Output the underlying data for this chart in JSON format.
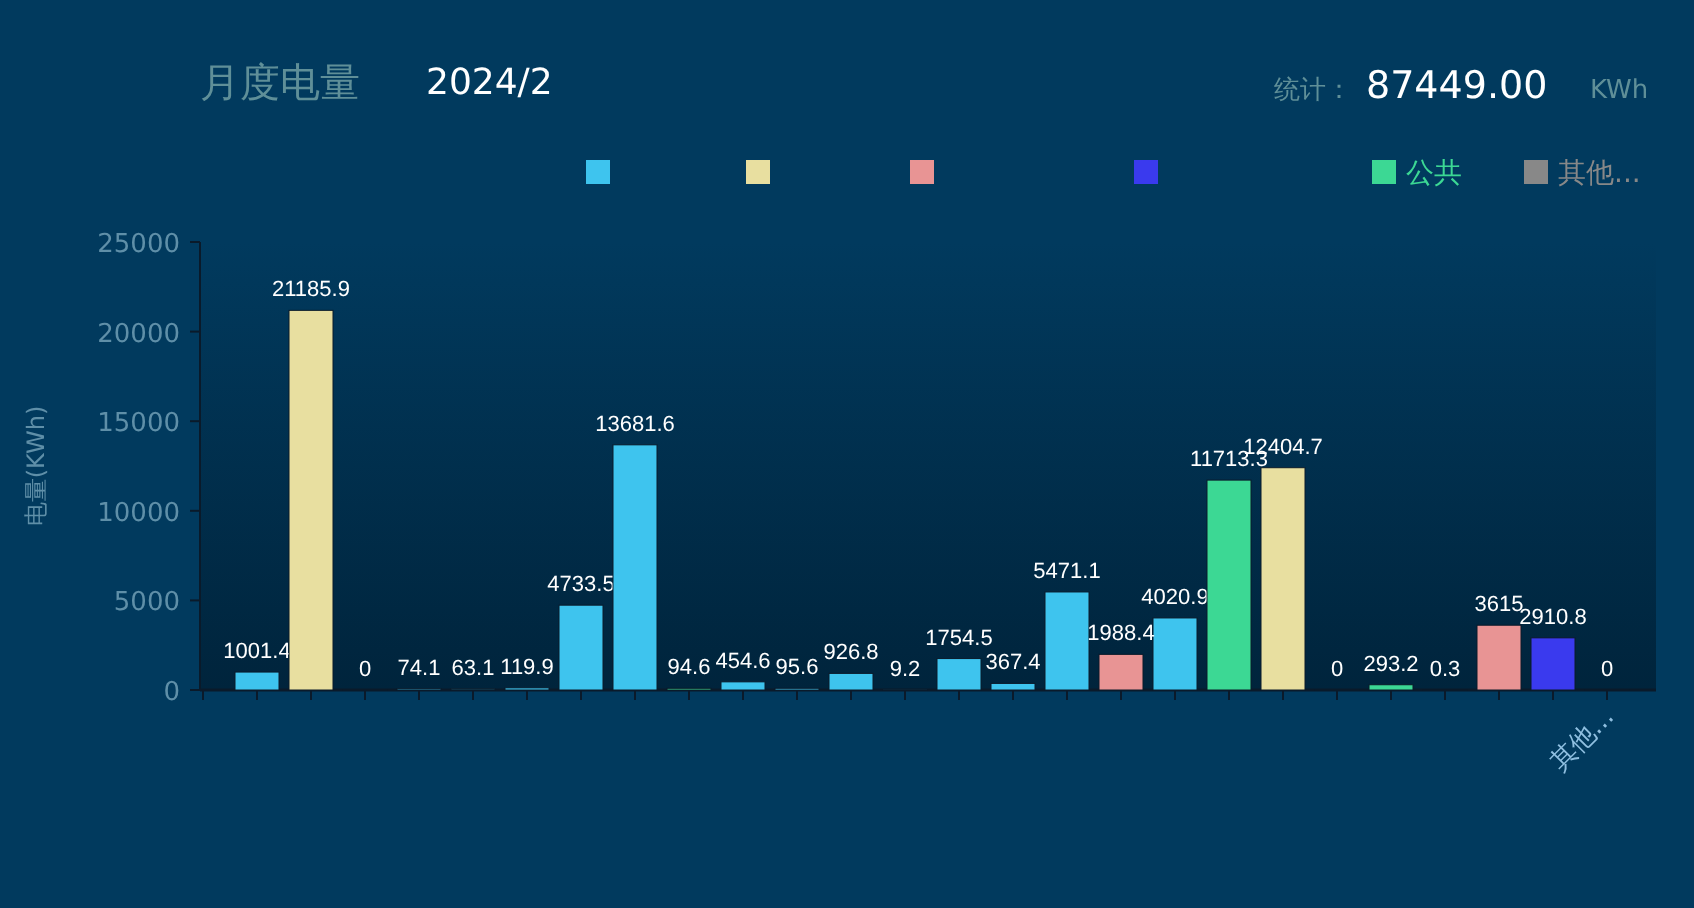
{
  "chart_data": {
    "type": "bar",
    "title": "月度电量",
    "subtitle": "2024/2",
    "annotations": [
      "统计：",
      "87449.00",
      "KWh"
    ],
    "ylabel": "电量(KWh)",
    "categories": [
      null,
      null,
      null,
      null,
      null,
      null,
      null,
      null,
      null,
      null,
      null,
      null,
      null,
      null,
      null,
      null,
      null,
      null,
      null,
      null,
      null,
      null,
      null,
      null,
      null,
      null,
      "其他..."
    ],
    "series": [
      {
        "color": "#3ec4ee",
        "values": [
          null,
          1001.4,
          null,
          0,
          74.1,
          63.1,
          119.9,
          4733.5,
          13681.6,
          null,
          454.6,
          95.6,
          926.8,
          9.2,
          1754.5,
          367.4,
          5471.1,
          null,
          4020.9,
          null,
          null,
          0,
          null,
          0.3,
          null,
          null,
          null
        ]
      },
      {
        "color": "#e8dfa0",
        "values": [
          null,
          null,
          21185.9,
          null,
          null,
          null,
          null,
          null,
          null,
          null,
          null,
          null,
          null,
          null,
          null,
          null,
          null,
          null,
          null,
          null,
          12404.7,
          null,
          null,
          null,
          null,
          null,
          null
        ]
      },
      {
        "color": "#e89494",
        "values": [
          null,
          null,
          null,
          null,
          null,
          null,
          null,
          null,
          null,
          null,
          null,
          null,
          null,
          null,
          null,
          null,
          null,
          1988.4,
          null,
          null,
          null,
          null,
          null,
          null,
          3615,
          null,
          null
        ]
      },
      {
        "color": "#3a3aee",
        "values": [
          null,
          null,
          null,
          null,
          null,
          null,
          null,
          null,
          null,
          null,
          null,
          null,
          null,
          null,
          null,
          null,
          null,
          null,
          null,
          null,
          null,
          null,
          null,
          null,
          null,
          2910.8,
          null
        ]
      },
      {
        "name": "公共",
        "color": "#3cd894",
        "values": [
          null,
          null,
          null,
          null,
          null,
          null,
          null,
          null,
          null,
          94.6,
          null,
          null,
          null,
          null,
          null,
          null,
          null,
          null,
          null,
          11713.3,
          null,
          null,
          293.2,
          null,
          null,
          null,
          null
        ]
      },
      {
        "name": "其他...",
        "color": "#888888",
        "values": [
          null,
          null,
          null,
          null,
          null,
          null,
          null,
          null,
          null,
          null,
          null,
          null,
          null,
          null,
          null,
          null,
          null,
          null,
          null,
          null,
          null,
          null,
          null,
          null,
          null,
          null,
          0
        ]
      }
    ],
    "ylim": [
      0,
      25000
    ],
    "yticks": [
      0,
      5000,
      10000,
      15000,
      20000,
      25000
    ],
    "data_labels": true,
    "legend": "top right"
  }
}
